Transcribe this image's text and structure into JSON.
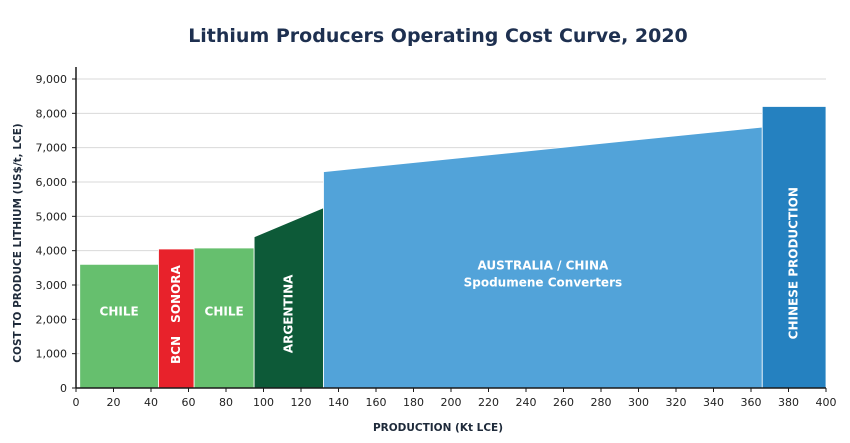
{
  "chart_data": {
    "type": "area",
    "title": "Lithium Producers Operating Cost Curve, 2020",
    "xlabel": "PRODUCTION (Kt LCE)",
    "ylabel": "COST TO PRODUCE LITHIUM (US$/t, LCE)",
    "xlim": [
      0,
      400
    ],
    "ylim": [
      0,
      9000
    ],
    "x_ticks": [
      "0",
      "20",
      "40",
      "60",
      "80",
      "100",
      "120",
      "140",
      "160",
      "180",
      "200",
      "220",
      "240",
      "260",
      "280",
      "300",
      "320",
      "340",
      "360",
      "380",
      "400"
    ],
    "y_ticks": [
      "0",
      "1,000",
      "2,000",
      "3,000",
      "4,000",
      "5,000",
      "6,000",
      "7,000",
      "8,000",
      "9,000"
    ],
    "grid": "horizontal",
    "segments": [
      {
        "x0": 2,
        "x1": 44,
        "y0": 3600,
        "y1": 3600,
        "color": "#66bf6e",
        "labels": [
          "CHILE"
        ],
        "label_orientation": "horizontal"
      },
      {
        "x0": 44,
        "x1": 63,
        "y0": 4050,
        "y1": 4050,
        "color": "#e8222b",
        "labels": [
          "SONORA",
          "BCN"
        ],
        "label_orientation": "vertical"
      },
      {
        "x0": 63,
        "x1": 95,
        "y0": 4080,
        "y1": 4080,
        "color": "#66bf6e",
        "labels": [
          "CHILE"
        ],
        "label_orientation": "horizontal"
      },
      {
        "x0": 95,
        "x1": 132,
        "y0": 4400,
        "y1": 5250,
        "color": "#0d5a38",
        "labels": [
          "ARGENTINA"
        ],
        "label_orientation": "vertical"
      },
      {
        "x0": 132,
        "x1": 366,
        "y0": 6300,
        "y1": 7600,
        "color": "#52a3d9",
        "labels": [
          "AUSTRALIA / CHINA",
          "Spodumene Converters"
        ],
        "label_orientation": "horizontal"
      },
      {
        "x0": 366,
        "x1": 400,
        "y0": 8200,
        "y1": 8200,
        "color": "#2581c0",
        "labels": [
          "CHINESE PRODUCTION"
        ],
        "label_orientation": "vertical"
      }
    ]
  }
}
